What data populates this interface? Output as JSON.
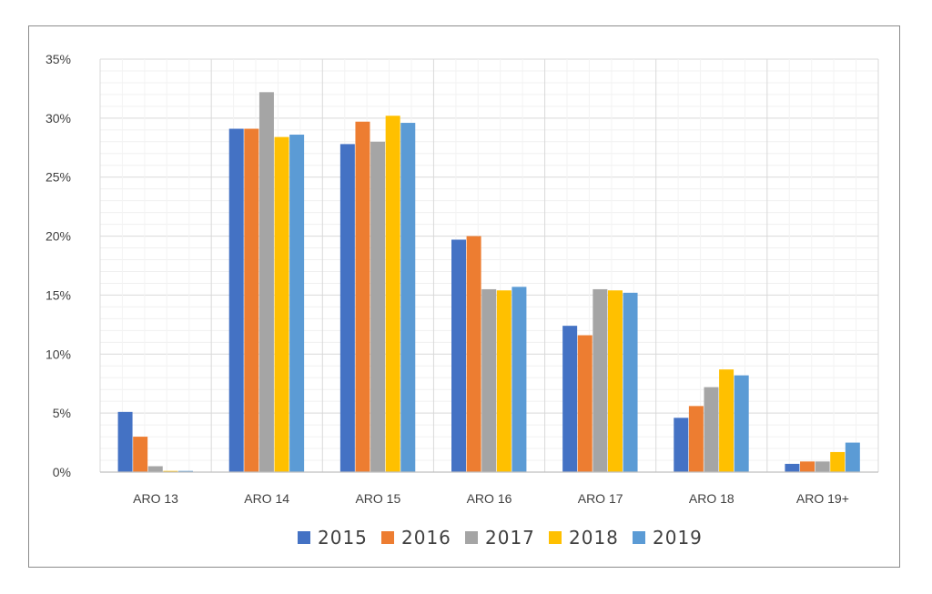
{
  "chart_data": {
    "type": "bar",
    "title": "",
    "xlabel": "",
    "ylabel": "",
    "categories": [
      "ARO 13",
      "ARO 14",
      "ARO 15",
      "ARO 16",
      "ARO 17",
      "ARO 18",
      "ARO 19+"
    ],
    "series": [
      {
        "name": "2015",
        "color": "#4472C4",
        "values": [
          5.1,
          29.1,
          27.8,
          19.7,
          12.4,
          4.6,
          0.7
        ]
      },
      {
        "name": "2016",
        "color": "#ED7D31",
        "values": [
          3.0,
          29.1,
          29.7,
          20.0,
          11.6,
          5.6,
          0.9
        ]
      },
      {
        "name": "2017",
        "color": "#A5A5A5",
        "values": [
          0.5,
          32.2,
          28.0,
          15.5,
          15.5,
          7.2,
          0.9
        ]
      },
      {
        "name": "2018",
        "color": "#FFC000",
        "values": [
          0.1,
          28.4,
          30.2,
          15.4,
          15.4,
          8.7,
          1.7
        ]
      },
      {
        "name": "2019",
        "color": "#5B9BD5",
        "values": [
          0.1,
          28.6,
          29.6,
          15.7,
          15.2,
          8.2,
          2.5
        ]
      }
    ],
    "y_unit": "%",
    "ylim": [
      0,
      35
    ],
    "y_ticks": [
      "0%",
      "5%",
      "10%",
      "15%",
      "20%",
      "25%",
      "30%",
      "35%"
    ],
    "grid": true,
    "legend_position": "bottom"
  }
}
